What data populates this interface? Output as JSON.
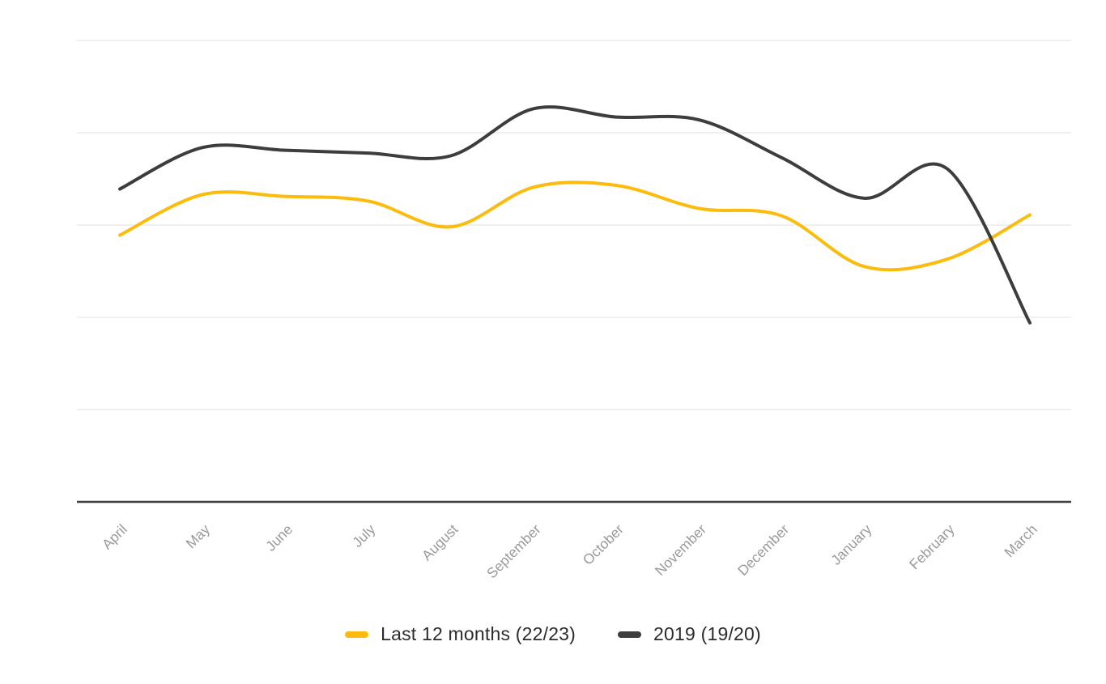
{
  "chart_data": {
    "type": "line",
    "title": "",
    "categories": [
      "April",
      "May",
      "June",
      "July",
      "August",
      "September",
      "October",
      "November",
      "December",
      "January",
      "February",
      "March"
    ],
    "series": [
      {
        "name": "Last 12 months (22/23)",
        "color": "#FBBC0D",
        "values": [
          2.89,
          3.33,
          3.31,
          3.26,
          2.98,
          3.41,
          3.43,
          3.18,
          3.1,
          2.55,
          2.63,
          3.11
        ]
      },
      {
        "name": "2019 (19/20)",
        "color": "#3D3D3D",
        "values": [
          3.39,
          3.84,
          3.81,
          3.78,
          3.75,
          4.26,
          4.17,
          4.14,
          3.73,
          3.29,
          3.61,
          1.94
        ]
      }
    ],
    "xlabel": "",
    "ylabel": "",
    "ylim": [
      0,
      5
    ],
    "y_tick_labels_visible": false,
    "gridlines": "horizontal",
    "gridline_count": 5,
    "line_style": "smooth",
    "legend_position": "bottom-center",
    "x_label_rotation_deg": -45,
    "notes": "No y-axis tick labels are shown; values are estimated in gridline units above the x-axis baseline (1 unit = one gridline spacing)."
  },
  "colors": {
    "background": "#ffffff",
    "gridline": "#ebebeb",
    "axis_line": "#3f3f3f",
    "x_label": "#9a9a9a",
    "legend_text": "#2b2b2b"
  }
}
